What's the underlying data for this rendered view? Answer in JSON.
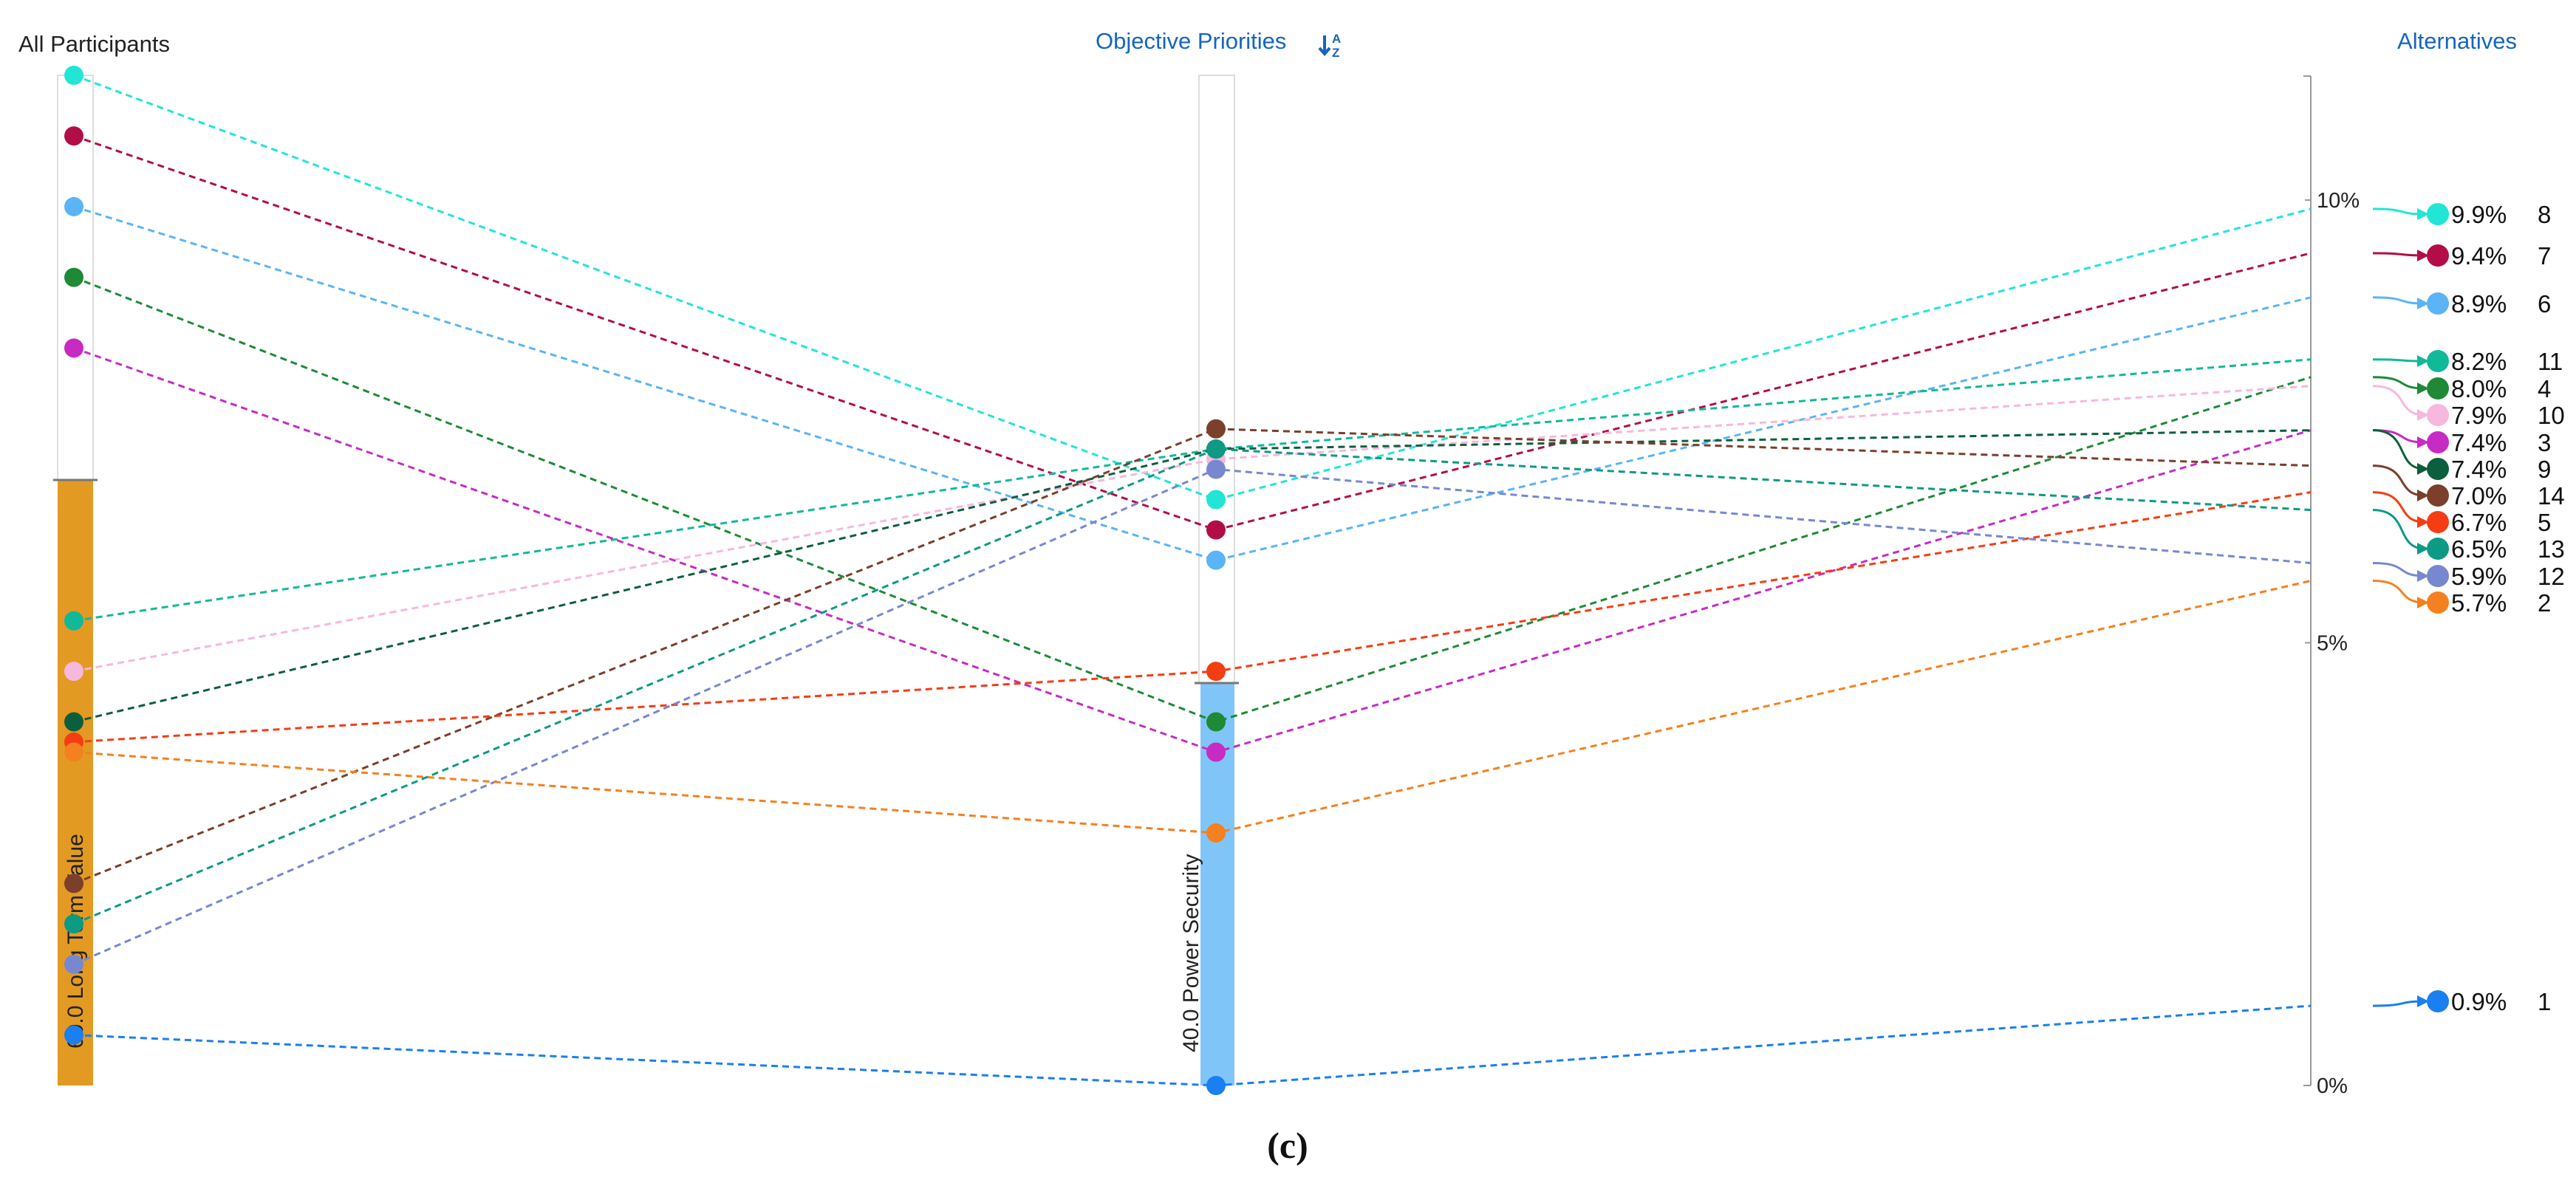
{
  "headers": {
    "participants": "All Participants",
    "objectives": "Objective Priorities",
    "objectives_icon": "sort-icon",
    "alternatives": "Alternatives"
  },
  "caption": "(c)",
  "colors": {
    "long_term_bar": "#e39a23",
    "power_bar": "#80c5f8",
    "header_blue": "#1565c0"
  },
  "chart_data": {
    "type": "parallel-coordinates",
    "objectives": [
      {
        "name": "Long Term Value",
        "weight": 60.0,
        "label": "60.0 Long Term Value"
      },
      {
        "name": "Power Security",
        "weight": 40.0,
        "label": "40.0 Power Security"
      }
    ],
    "axis_ticks": [
      "10%",
      "5%",
      "0%"
    ],
    "alternatives": [
      {
        "id": "8",
        "pct": "9.9%",
        "value": 9.9,
        "color": "#21e6d6",
        "long_term": 1.0,
        "power": 0.58
      },
      {
        "id": "7",
        "pct": "9.4%",
        "value": 9.4,
        "color": "#b30d48",
        "long_term": 0.94,
        "power": 0.55
      },
      {
        "id": "6",
        "pct": "8.9%",
        "value": 8.9,
        "color": "#5ab4f5",
        "long_term": 0.87,
        "power": 0.52
      },
      {
        "id": "11",
        "pct": "8.2%",
        "value": 8.2,
        "color": "#10b99a",
        "long_term": 0.46,
        "power": 0.63
      },
      {
        "id": "4",
        "pct": "8.0%",
        "value": 8.0,
        "color": "#1e8a36",
        "long_term": 0.8,
        "power": 0.36
      },
      {
        "id": "10",
        "pct": "7.9%",
        "value": 7.9,
        "color": "#f7b8df",
        "long_term": 0.41,
        "power": 0.62
      },
      {
        "id": "3",
        "pct": "7.4%",
        "value": 7.4,
        "color": "#c72bc4",
        "long_term": 0.73,
        "power": 0.33
      },
      {
        "id": "9",
        "pct": "7.4%",
        "value": 7.4,
        "color": "#0c5f3e",
        "long_term": 0.36,
        "power": 0.63
      },
      {
        "id": "14",
        "pct": "7.0%",
        "value": 7.0,
        "color": "#7b3f2b",
        "long_term": 0.2,
        "power": 0.65
      },
      {
        "id": "5",
        "pct": "6.7%",
        "value": 6.7,
        "color": "#f53d14",
        "long_term": 0.34,
        "power": 0.41
      },
      {
        "id": "13",
        "pct": "6.5%",
        "value": 6.5,
        "color": "#0c9a84",
        "long_term": 0.16,
        "power": 0.63
      },
      {
        "id": "12",
        "pct": "5.9%",
        "value": 5.9,
        "color": "#7788d0",
        "long_term": 0.12,
        "power": 0.61
      },
      {
        "id": "2",
        "pct": "5.7%",
        "value": 5.7,
        "color": "#f5801f",
        "long_term": 0.33,
        "power": 0.25
      },
      {
        "id": "1",
        "pct": "0.9%",
        "value": 0.9,
        "color": "#1a7ff0",
        "long_term": 0.05,
        "power": 0.0
      }
    ]
  }
}
